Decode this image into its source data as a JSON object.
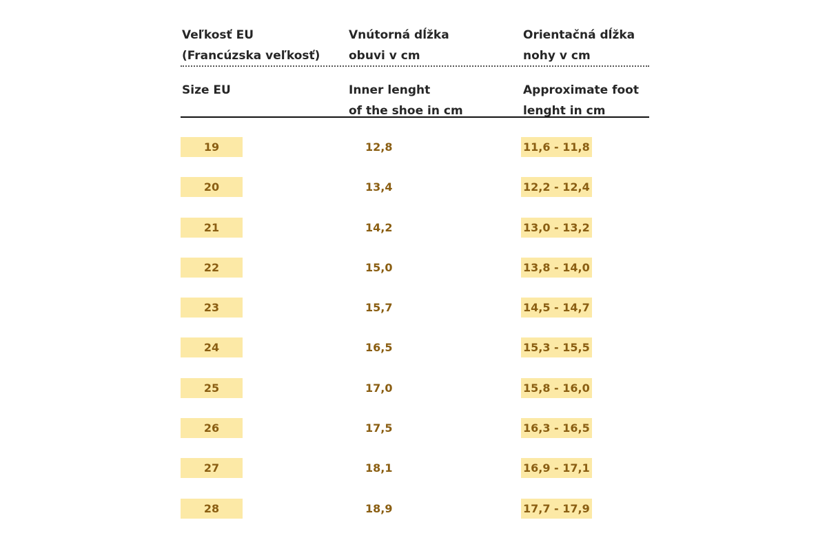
{
  "header": {
    "sk": {
      "size": "Veľkosť EU\n(Francúzska veľkosť)",
      "inner": "Vnútorná dĺžka\nobuvi v cm",
      "foot": "Orientačná dĺžka\nnohy v cm"
    },
    "en": {
      "size": "Size EU",
      "inner": "Inner lenght\nof the shoe in cm",
      "foot": "Approximate foot\nlenght in cm"
    }
  },
  "rows": [
    {
      "size": "19",
      "inner": "12,8",
      "foot": "11,6 - 11,8"
    },
    {
      "size": "20",
      "inner": "13,4",
      "foot": "12,2 - 12,4"
    },
    {
      "size": "21",
      "inner": "14,2",
      "foot": "13,0 - 13,2"
    },
    {
      "size": "22",
      "inner": "15,0",
      "foot": "13,8 - 14,0"
    },
    {
      "size": "23",
      "inner": "15,7",
      "foot": "14,5 - 14,7"
    },
    {
      "size": "24",
      "inner": "16,5",
      "foot": "15,3 - 15,5"
    },
    {
      "size": "25",
      "inner": "17,0",
      "foot": "15,8 - 16,0"
    },
    {
      "size": "26",
      "inner": "17,5",
      "foot": "16,3 - 16,5"
    },
    {
      "size": "27",
      "inner": "18,1",
      "foot": "16,9 - 17,1"
    },
    {
      "size": "28",
      "inner": "18,9",
      "foot": "17,7 - 17,9"
    }
  ],
  "colors": {
    "highlight": "#fce9a6",
    "value_text": "#8a5e12",
    "header_text": "#262626"
  }
}
